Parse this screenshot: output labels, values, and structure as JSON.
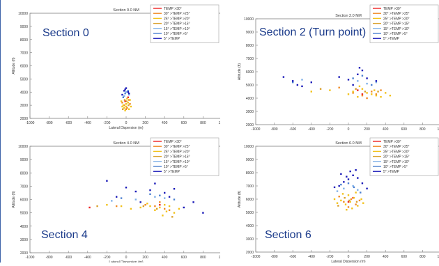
{
  "legend_labels": [
    "TEMP >30°",
    "30° >TEMP >25°",
    "25° >TEMP >20°",
    "20° >TEMP >15°",
    "15° >TEMP >10°",
    "10° >TEMP >5°",
    "5° >TEMP"
  ],
  "legend_colors": [
    "#ee2222",
    "#f08a24",
    "#f2c21a",
    "#d9a02a",
    "#7fb0e8",
    "#4a7fd0",
    "#1a1ab8"
  ],
  "chart_data": [
    {
      "type": "scatter",
      "title": "Section 0.0 NM",
      "overlay_label": "Section 0",
      "xlabel": "Lateral Dispersion (m)",
      "ylabel": "Altitude (ft)",
      "xlim": [
        -1000,
        1000
      ],
      "ylim": [
        2000,
        10000
      ],
      "xticks": [
        "-1000",
        "-800",
        "-600",
        "-400",
        "-200",
        "0",
        "200",
        "400",
        "600",
        "800",
        "1000"
      ],
      "yticks": [
        "2000",
        "3000",
        "4000",
        "5000",
        "6000",
        "7000",
        "8000",
        "9000",
        "10000"
      ],
      "series": [
        {
          "name": "TEMP >30°",
          "points": [
            [
              -10,
              3300
            ],
            [
              20,
              3600
            ]
          ]
        },
        {
          "name": "30° >TEMP >25°",
          "points": [
            [
              -20,
              3000
            ],
            [
              10,
              2800
            ],
            [
              30,
              3400
            ],
            [
              -40,
              3200
            ],
            [
              0,
              2700
            ],
            [
              40,
              3100
            ]
          ]
        },
        {
          "name": "25° >TEMP >20°",
          "points": [
            [
              -30,
              3000
            ],
            [
              0,
              2900
            ],
            [
              20,
              3200
            ],
            [
              -10,
              2600
            ],
            [
              50,
              2900
            ],
            [
              -50,
              3300
            ],
            [
              10,
              3500
            ],
            [
              -20,
              2800
            ],
            [
              30,
              2700
            ],
            [
              0,
              3100
            ],
            [
              -40,
              2900
            ],
            [
              40,
              3400
            ]
          ]
        },
        {
          "name": "20° >TEMP >15°",
          "points": [
            [
              -15,
              3400
            ],
            [
              25,
              3000
            ],
            [
              -35,
              2700
            ],
            [
              5,
              3300
            ]
          ]
        },
        {
          "name": "15° >TEMP >10°",
          "points": [
            [
              -20,
              3700
            ],
            [
              30,
              3800
            ],
            [
              0,
              4000
            ]
          ]
        },
        {
          "name": "10° >TEMP >5°",
          "points": [
            [
              -10,
              3900
            ],
            [
              20,
              4100
            ],
            [
              -30,
              3600
            ]
          ]
        },
        {
          "name": "5° >TEMP",
          "points": [
            [
              -10,
              4200
            ],
            [
              20,
              4000
            ],
            [
              -40,
              3800
            ],
            [
              0,
              4300
            ],
            [
              30,
              3900
            ],
            [
              -20,
              4100
            ]
          ]
        }
      ]
    },
    {
      "type": "scatter",
      "title": "Section 2.0 NM",
      "overlay_label": "Section 2 (Turn point)",
      "xlabel": "Lateral Dispersion (m)",
      "ylabel": "Altitude (ft)",
      "xlim": [
        -1000,
        1000
      ],
      "ylim": [
        2000,
        10000
      ],
      "xticks": [
        "-1000",
        "-800",
        "-600",
        "-400",
        "-200",
        "0",
        "200",
        "400",
        "600",
        "800",
        "1000"
      ],
      "yticks": [
        "2000",
        "3000",
        "4000",
        "5000",
        "6000",
        "7000",
        "8000",
        "9000",
        "10000"
      ],
      "series": [
        {
          "name": "TEMP >30°",
          "points": [
            [
              150,
              4300
            ],
            [
              100,
              4600
            ]
          ]
        },
        {
          "name": "30° >TEMP >25°",
          "points": [
            [
              150,
              4200
            ],
            [
              250,
              4500
            ],
            [
              50,
              4400
            ],
            [
              300,
              4300
            ],
            [
              -100,
              4800
            ],
            [
              200,
              4000
            ],
            [
              350,
              4600
            ]
          ]
        },
        {
          "name": "25° >TEMP >20°",
          "points": [
            [
              100,
              4100
            ],
            [
              200,
              4400
            ],
            [
              300,
              4200
            ],
            [
              150,
              4700
            ],
            [
              250,
              4300
            ],
            [
              50,
              4500
            ],
            [
              350,
              4100
            ],
            [
              400,
              4400
            ],
            [
              -200,
              4600
            ],
            [
              -400,
              4500
            ],
            [
              0,
              4300
            ],
            [
              450,
              4200
            ],
            [
              120,
              4900
            ],
            [
              280,
              4600
            ]
          ]
        },
        {
          "name": "20° >TEMP >15°",
          "points": [
            [
              180,
              4500
            ],
            [
              80,
              4700
            ],
            [
              320,
              4500
            ],
            [
              -300,
              4700
            ]
          ]
        },
        {
          "name": "15° >TEMP >10°",
          "points": [
            [
              100,
              5300
            ],
            [
              200,
              5100
            ],
            [
              -500,
              5400
            ],
            [
              300,
              5200
            ]
          ]
        },
        {
          "name": "10° >TEMP >5°",
          "points": [
            [
              50,
              5500
            ],
            [
              -600,
              5200
            ],
            [
              150,
              5700
            ],
            [
              250,
              5000
            ]
          ]
        },
        {
          "name": "5° >TEMP",
          "points": [
            [
              -600,
              5300
            ],
            [
              -500,
              4900
            ],
            [
              0,
              5400
            ],
            [
              100,
              5800
            ],
            [
              150,
              6100
            ],
            [
              -700,
              5600
            ],
            [
              -400,
              5200
            ],
            [
              200,
              5500
            ],
            [
              50,
              5000
            ],
            [
              -100,
              5600
            ],
            [
              300,
              5300
            ],
            [
              -550,
              5000
            ],
            [
              120,
              6300
            ]
          ]
        }
      ]
    },
    {
      "type": "scatter",
      "title": "Section 4.0 NM",
      "overlay_label": "Section 4",
      "xlabel": "Lateral Dispersion (m)",
      "ylabel": "Altitude (ft)",
      "xlim": [
        -1000,
        1000
      ],
      "ylim": [
        2000,
        10000
      ],
      "xticks": [
        "-1000",
        "-800",
        "-600",
        "-400",
        "-200",
        "0",
        "200",
        "400",
        "600",
        "800",
        "1000"
      ],
      "yticks": [
        "2000",
        "3000",
        "4000",
        "5000",
        "6000",
        "7000",
        "8000",
        "9000",
        "10000"
      ],
      "series": [
        {
          "name": "TEMP >30°",
          "points": [
            [
              350,
              5600
            ],
            [
              -380,
              5400
            ]
          ]
        },
        {
          "name": "30° >TEMP >25°",
          "points": [
            [
              300,
              5500
            ],
            [
              400,
              5300
            ],
            [
              200,
              5600
            ],
            [
              450,
              5200
            ],
            [
              -100,
              5500
            ],
            [
              350,
              5800
            ]
          ]
        },
        {
          "name": "25° >TEMP >20°",
          "points": [
            [
              250,
              5500
            ],
            [
              350,
              5400
            ],
            [
              400,
              5600
            ],
            [
              300,
              5200
            ],
            [
              450,
              5500
            ],
            [
              150,
              5400
            ],
            [
              -200,
              5600
            ],
            [
              50,
              5300
            ],
            [
              500,
              5000
            ],
            [
              380,
              4800
            ],
            [
              220,
              5700
            ],
            [
              -50,
              5500
            ],
            [
              550,
              5300
            ],
            [
              420,
              5100
            ]
          ]
        },
        {
          "name": "20° >TEMP >15°",
          "points": [
            [
              320,
              5300
            ],
            [
              180,
              5500
            ],
            [
              480,
              4700
            ],
            [
              -300,
              5500
            ]
          ]
        },
        {
          "name": "15° >TEMP >10°",
          "points": [
            [
              300,
              6200
            ],
            [
              100,
              6000
            ],
            [
              -150,
              5900
            ],
            [
              400,
              6100
            ]
          ]
        },
        {
          "name": "10° >TEMP >5°",
          "points": [
            [
              250,
              6400
            ],
            [
              350,
              6300
            ],
            [
              -50,
              6100
            ],
            [
              500,
              6000
            ]
          ]
        },
        {
          "name": "5° >TEMP",
          "points": [
            [
              400,
              6500
            ],
            [
              300,
              7200
            ],
            [
              -200,
              7400
            ],
            [
              100,
              6600
            ],
            [
              500,
              6800
            ],
            [
              700,
              5800
            ],
            [
              -100,
              6200
            ],
            [
              600,
              5400
            ],
            [
              250,
              6700
            ],
            [
              0,
              6900
            ],
            [
              450,
              6200
            ],
            [
              800,
              5000
            ],
            [
              350,
              7900
            ],
            [
              150,
              5800
            ]
          ]
        }
      ]
    },
    {
      "type": "scatter",
      "title": "Section 6.0 NM",
      "overlay_label": "Section 6",
      "xlabel": "Lateral Dispersion (m)",
      "ylabel": "Altitude (ft)",
      "xlim": [
        -1000,
        1000
      ],
      "ylim": [
        2000,
        10000
      ],
      "xticks": [
        "-1000",
        "-800",
        "-600",
        "-400",
        "-200",
        "0",
        "200",
        "400",
        "600",
        "800",
        "1000"
      ],
      "yticks": [
        "2000",
        "3000",
        "4000",
        "5000",
        "6000",
        "7000",
        "8000",
        "9000",
        "10000"
      ],
      "series": [
        {
          "name": "TEMP >30°",
          "points": [
            [
              0,
              5800
            ],
            [
              50,
              6100
            ]
          ]
        },
        {
          "name": "30° >TEMP >25°",
          "points": [
            [
              -50,
              5800
            ],
            [
              30,
              6000
            ],
            [
              80,
              5600
            ],
            [
              -100,
              6200
            ],
            [
              0,
              5400
            ],
            [
              120,
              5900
            ]
          ]
        },
        {
          "name": "25° >TEMP >20°",
          "points": [
            [
              -30,
              5600
            ],
            [
              20,
              5800
            ],
            [
              60,
              6100
            ],
            [
              -80,
              5900
            ],
            [
              100,
              5500
            ],
            [
              -120,
              5700
            ],
            [
              0,
              6300
            ],
            [
              40,
              5300
            ],
            [
              -60,
              6400
            ],
            [
              140,
              6000
            ],
            [
              -20,
              5200
            ],
            [
              80,
              6500
            ],
            [
              -150,
              6000
            ],
            [
              160,
              5700
            ]
          ]
        },
        {
          "name": "20° >TEMP >15°",
          "points": [
            [
              10,
              5900
            ],
            [
              -40,
              6100
            ],
            [
              90,
              5800
            ],
            [
              -110,
              5500
            ]
          ]
        },
        {
          "name": "15° >TEMP >10°",
          "points": [
            [
              -50,
              6800
            ],
            [
              50,
              7000
            ],
            [
              -120,
              6600
            ],
            [
              100,
              6700
            ]
          ]
        },
        {
          "name": "10° >TEMP >5°",
          "points": [
            [
              0,
              7200
            ],
            [
              60,
              6900
            ],
            [
              -80,
              7100
            ],
            [
              130,
              6500
            ]
          ]
        },
        {
          "name": "5° >TEMP",
          "points": [
            [
              0,
              7500
            ],
            [
              50,
              7800
            ],
            [
              -50,
              7300
            ],
            [
              100,
              7600
            ],
            [
              -100,
              7000
            ],
            [
              20,
              8100
            ],
            [
              150,
              7200
            ],
            [
              -20,
              7700
            ],
            [
              80,
              8200
            ],
            [
              -150,
              6900
            ],
            [
              200,
              6800
            ],
            [
              -80,
              7900
            ]
          ]
        }
      ]
    }
  ]
}
